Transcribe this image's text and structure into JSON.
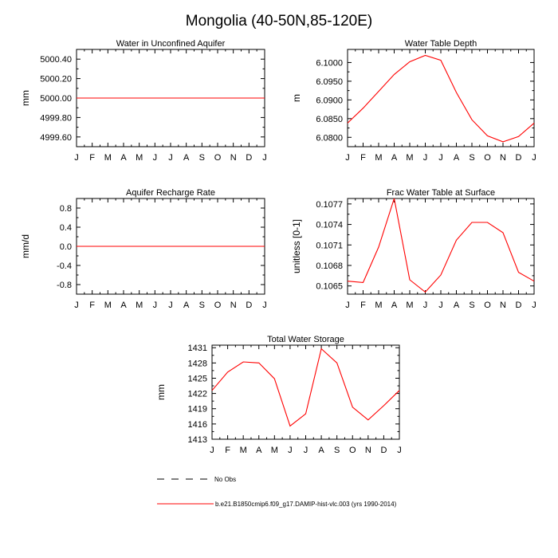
{
  "figure": {
    "title": "Mongolia (40-50N,85-120E)"
  },
  "months": [
    "J",
    "F",
    "M",
    "A",
    "M",
    "J",
    "J",
    "A",
    "S",
    "O",
    "N",
    "D",
    "J"
  ],
  "legend": {
    "obs_label": "No Obs",
    "model_label": "b.e21.B1850cmip6.f09_g17.DAMIP-hist-vlc.003 (yrs 1990-2014)",
    "obs_color": "#000000",
    "model_color": "#ff0000"
  },
  "chart_data": [
    {
      "type": "line",
      "title": "Water in Unconfined Aquifer",
      "ylabel": "mm",
      "xlabel": "",
      "ylim": [
        4999.5,
        5000.5
      ],
      "yticks": [
        4999.6,
        4999.8,
        5000.0,
        5000.2,
        5000.4
      ],
      "ytick_labels": [
        "4999.60",
        "4999.80",
        "5000.00",
        "5000.20",
        "5000.40"
      ],
      "series": [
        {
          "name": "b.e21.B1850cmip6.f09_g17.DAMIP-hist-vlc.003 (yrs 1990-2014)",
          "color": "#ff0000",
          "values": [
            5000,
            5000,
            5000,
            5000,
            5000,
            5000,
            5000,
            5000,
            5000,
            5000,
            5000,
            5000,
            5000
          ]
        }
      ]
    },
    {
      "type": "line",
      "title": "Water Table Depth",
      "ylabel": "m",
      "xlabel": "",
      "ylim": [
        6.0775,
        6.1035
      ],
      "yticks": [
        6.08,
        6.085,
        6.09,
        6.095,
        6.1
      ],
      "ytick_labels": [
        "6.0800",
        "6.0850",
        "6.0900",
        "6.0950",
        "6.1000"
      ],
      "series": [
        {
          "name": "b.e21.B1850cmip6.f09_g17.DAMIP-hist-vlc.003 (yrs 1990-2014)",
          "color": "#ff0000",
          "values": [
            6.0838,
            6.0878,
            6.0923,
            6.0968,
            6.1002,
            6.1019,
            6.1006,
            6.092,
            6.0847,
            6.0804,
            6.0788,
            6.0802,
            6.0838
          ]
        }
      ]
    },
    {
      "type": "line",
      "title": "Aquifer Recharge Rate",
      "ylabel": "mm/d",
      "xlabel": "",
      "ylim": [
        -1.0,
        1.0
      ],
      "yticks": [
        -0.8,
        -0.4,
        0.0,
        0.4,
        0.8
      ],
      "ytick_labels": [
        "-0.8",
        "-0.4",
        "0.0",
        "0.4",
        "0.8"
      ],
      "series": [
        {
          "name": "b.e21.B1850cmip6.f09_g17.DAMIP-hist-vlc.003 (yrs 1990-2014)",
          "color": "#ff0000",
          "values": [
            0,
            0,
            0,
            0,
            0,
            0,
            0,
            0,
            0,
            0,
            0,
            0,
            0
          ]
        }
      ]
    },
    {
      "type": "line",
      "title": "Frac Water Table at Surface",
      "ylabel": "unitless [0-1]",
      "xlabel": "",
      "ylim": [
        0.10638,
        0.10778
      ],
      "yticks": [
        0.1065,
        0.1068,
        0.1071,
        0.1074,
        0.1077
      ],
      "ytick_labels": [
        "0.1065",
        "0.1068",
        "0.1071",
        "0.1074",
        "0.1077"
      ],
      "series": [
        {
          "name": "b.e21.B1850cmip6.f09_g17.DAMIP-hist-vlc.003 (yrs 1990-2014)",
          "color": "#ff0000",
          "values": [
            0.10657,
            0.10655,
            0.10707,
            0.10778,
            0.10659,
            0.10641,
            0.10666,
            0.10717,
            0.10743,
            0.10743,
            0.10728,
            0.1067,
            0.10657
          ]
        }
      ]
    },
    {
      "type": "line",
      "title": "Total Water Storage",
      "ylabel": "mm",
      "xlabel": "",
      "ylim": [
        1413,
        1431.5
      ],
      "yticks": [
        1413,
        1416,
        1419,
        1422,
        1425,
        1428,
        1431
      ],
      "ytick_labels": [
        "1413",
        "1416",
        "1419",
        "1422",
        "1425",
        "1428",
        "1431"
      ],
      "series": [
        {
          "name": "b.e21.B1850cmip6.f09_g17.DAMIP-hist-vlc.003 (yrs 1990-2014)",
          "color": "#ff0000",
          "values": [
            1422.6,
            1426.2,
            1428.2,
            1428.0,
            1424.9,
            1415.6,
            1418.0,
            1430.8,
            1428.0,
            1419.3,
            1416.8,
            1419.6,
            1422.6
          ]
        }
      ]
    }
  ]
}
